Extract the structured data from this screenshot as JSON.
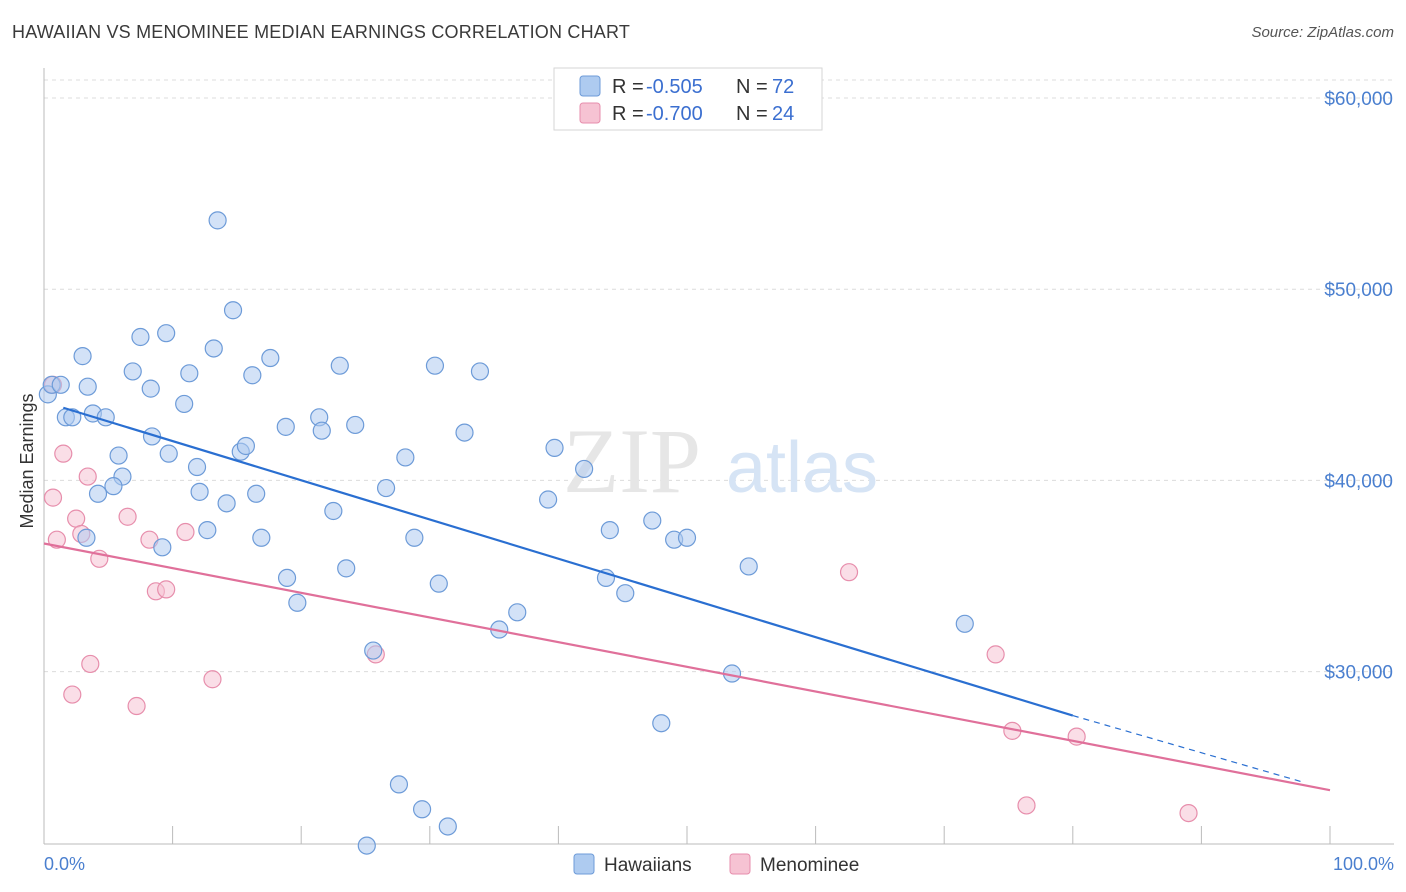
{
  "title": "HAWAIIAN VS MENOMINEE MEDIAN EARNINGS CORRELATION CHART",
  "source": "Source: ZipAtlas.com",
  "watermark": {
    "zip": "ZIP",
    "atlas": "atlas"
  },
  "colors": {
    "hawaiians_fill": "#aecbf0",
    "hawaiians_stroke": "#6d9bd8",
    "hawaiians_line": "#2a6fd1",
    "menominee_fill": "#f6c3d3",
    "menominee_stroke": "#e78eac",
    "menominee_line": "#e0709a",
    "axis_text": "#4a7fcf"
  },
  "legend": {
    "rows": [
      {
        "r_label": "R =",
        "r_value": "-0.505",
        "n_label": "N =",
        "n_value": "72"
      },
      {
        "r_label": "R =",
        "r_value": "-0.700",
        "n_label": "N =",
        "n_value": "24"
      }
    ]
  },
  "bottom_legend": [
    "Hawaiians",
    "Menominee"
  ],
  "chart_data": {
    "type": "scatter",
    "title": "HAWAIIAN VS MENOMINEE MEDIAN EARNINGS CORRELATION CHART",
    "xlabel": "",
    "ylabel": "Median Earnings",
    "xlim": [
      0,
      100
    ],
    "ylim": [
      19500,
      63000
    ],
    "x_tick_labels": [
      "0.0%",
      "100.0%"
    ],
    "y_ticks": [
      {
        "value": 30000,
        "label": "$30,000"
      },
      {
        "value": 40000,
        "label": "$40,000"
      },
      {
        "value": 50000,
        "label": "$50,000"
      },
      {
        "value": 60000,
        "label": "$60,000"
      }
    ],
    "series": [
      {
        "name": "Hawaiians",
        "r": -0.505,
        "n": 72,
        "points": [
          [
            0.3,
            44500
          ],
          [
            0.6,
            45000
          ],
          [
            1.3,
            45000
          ],
          [
            1.7,
            43300
          ],
          [
            2.2,
            43300
          ],
          [
            3.0,
            46500
          ],
          [
            3.4,
            44900
          ],
          [
            3.8,
            43500
          ],
          [
            4.8,
            43300
          ],
          [
            5.8,
            41300
          ],
          [
            6.1,
            40200
          ],
          [
            4.2,
            39300
          ],
          [
            5.4,
            39700
          ],
          [
            6.9,
            45700
          ],
          [
            7.5,
            47500
          ],
          [
            8.3,
            44800
          ],
          [
            8.4,
            42300
          ],
          [
            9.5,
            47700
          ],
          [
            9.7,
            41400
          ],
          [
            10.9,
            44000
          ],
          [
            11.3,
            45600
          ],
          [
            11.9,
            40700
          ],
          [
            12.1,
            39400
          ],
          [
            12.7,
            37400
          ],
          [
            13.2,
            46900
          ],
          [
            13.5,
            53600
          ],
          [
            14.2,
            38800
          ],
          [
            14.7,
            48900
          ],
          [
            15.3,
            41500
          ],
          [
            15.7,
            41800
          ],
          [
            16.2,
            45500
          ],
          [
            16.5,
            39300
          ],
          [
            16.9,
            37000
          ],
          [
            17.6,
            46400
          ],
          [
            18.8,
            42800
          ],
          [
            18.9,
            34900
          ],
          [
            19.7,
            33600
          ],
          [
            21.4,
            43300
          ],
          [
            21.6,
            42600
          ],
          [
            22.5,
            38400
          ],
          [
            23.0,
            46000
          ],
          [
            23.5,
            35400
          ],
          [
            24.2,
            42900
          ],
          [
            25.1,
            20900
          ],
          [
            25.6,
            31100
          ],
          [
            26.6,
            39600
          ],
          [
            27.6,
            24100
          ],
          [
            28.1,
            41200
          ],
          [
            28.8,
            37000
          ],
          [
            29.4,
            22800
          ],
          [
            30.4,
            46000
          ],
          [
            30.7,
            34600
          ],
          [
            31.4,
            21900
          ],
          [
            32.7,
            42500
          ],
          [
            33.9,
            45700
          ],
          [
            35.4,
            32200
          ],
          [
            36.8,
            33100
          ],
          [
            39.2,
            39000
          ],
          [
            39.7,
            41700
          ],
          [
            42.0,
            40600
          ],
          [
            43.7,
            34900
          ],
          [
            44.0,
            37400
          ],
          [
            45.2,
            34100
          ],
          [
            47.3,
            37900
          ],
          [
            48.0,
            27300
          ],
          [
            49.0,
            36900
          ],
          [
            50.0,
            37000
          ],
          [
            53.5,
            29900
          ],
          [
            54.8,
            35500
          ],
          [
            71.6,
            32500
          ],
          [
            3.3,
            37000
          ],
          [
            9.2,
            36500
          ]
        ],
        "trend": {
          "x0": 1.5,
          "y0": 43800,
          "x1": 80,
          "y1": 27700,
          "dashed_to_x": 98,
          "dashed_to_y": 24200
        }
      },
      {
        "name": "Menominee",
        "r": -0.7,
        "n": 24,
        "points": [
          [
            0.7,
            45000
          ],
          [
            0.7,
            39100
          ],
          [
            1.0,
            36900
          ],
          [
            1.5,
            41400
          ],
          [
            2.2,
            28800
          ],
          [
            2.5,
            38000
          ],
          [
            2.9,
            37200
          ],
          [
            3.4,
            40200
          ],
          [
            3.6,
            30400
          ],
          [
            4.3,
            35900
          ],
          [
            6.5,
            38100
          ],
          [
            7.2,
            28200
          ],
          [
            8.2,
            36900
          ],
          [
            8.7,
            34200
          ],
          [
            9.5,
            34300
          ],
          [
            11.0,
            37300
          ],
          [
            13.1,
            29600
          ],
          [
            25.8,
            30900
          ],
          [
            62.6,
            35200
          ],
          [
            74.0,
            30900
          ],
          [
            75.3,
            26900
          ],
          [
            76.4,
            23000
          ],
          [
            80.3,
            26600
          ],
          [
            89.0,
            22600
          ]
        ],
        "trend": {
          "x0": 0,
          "y0": 36700,
          "x1": 100,
          "y1": 23800
        }
      }
    ]
  }
}
